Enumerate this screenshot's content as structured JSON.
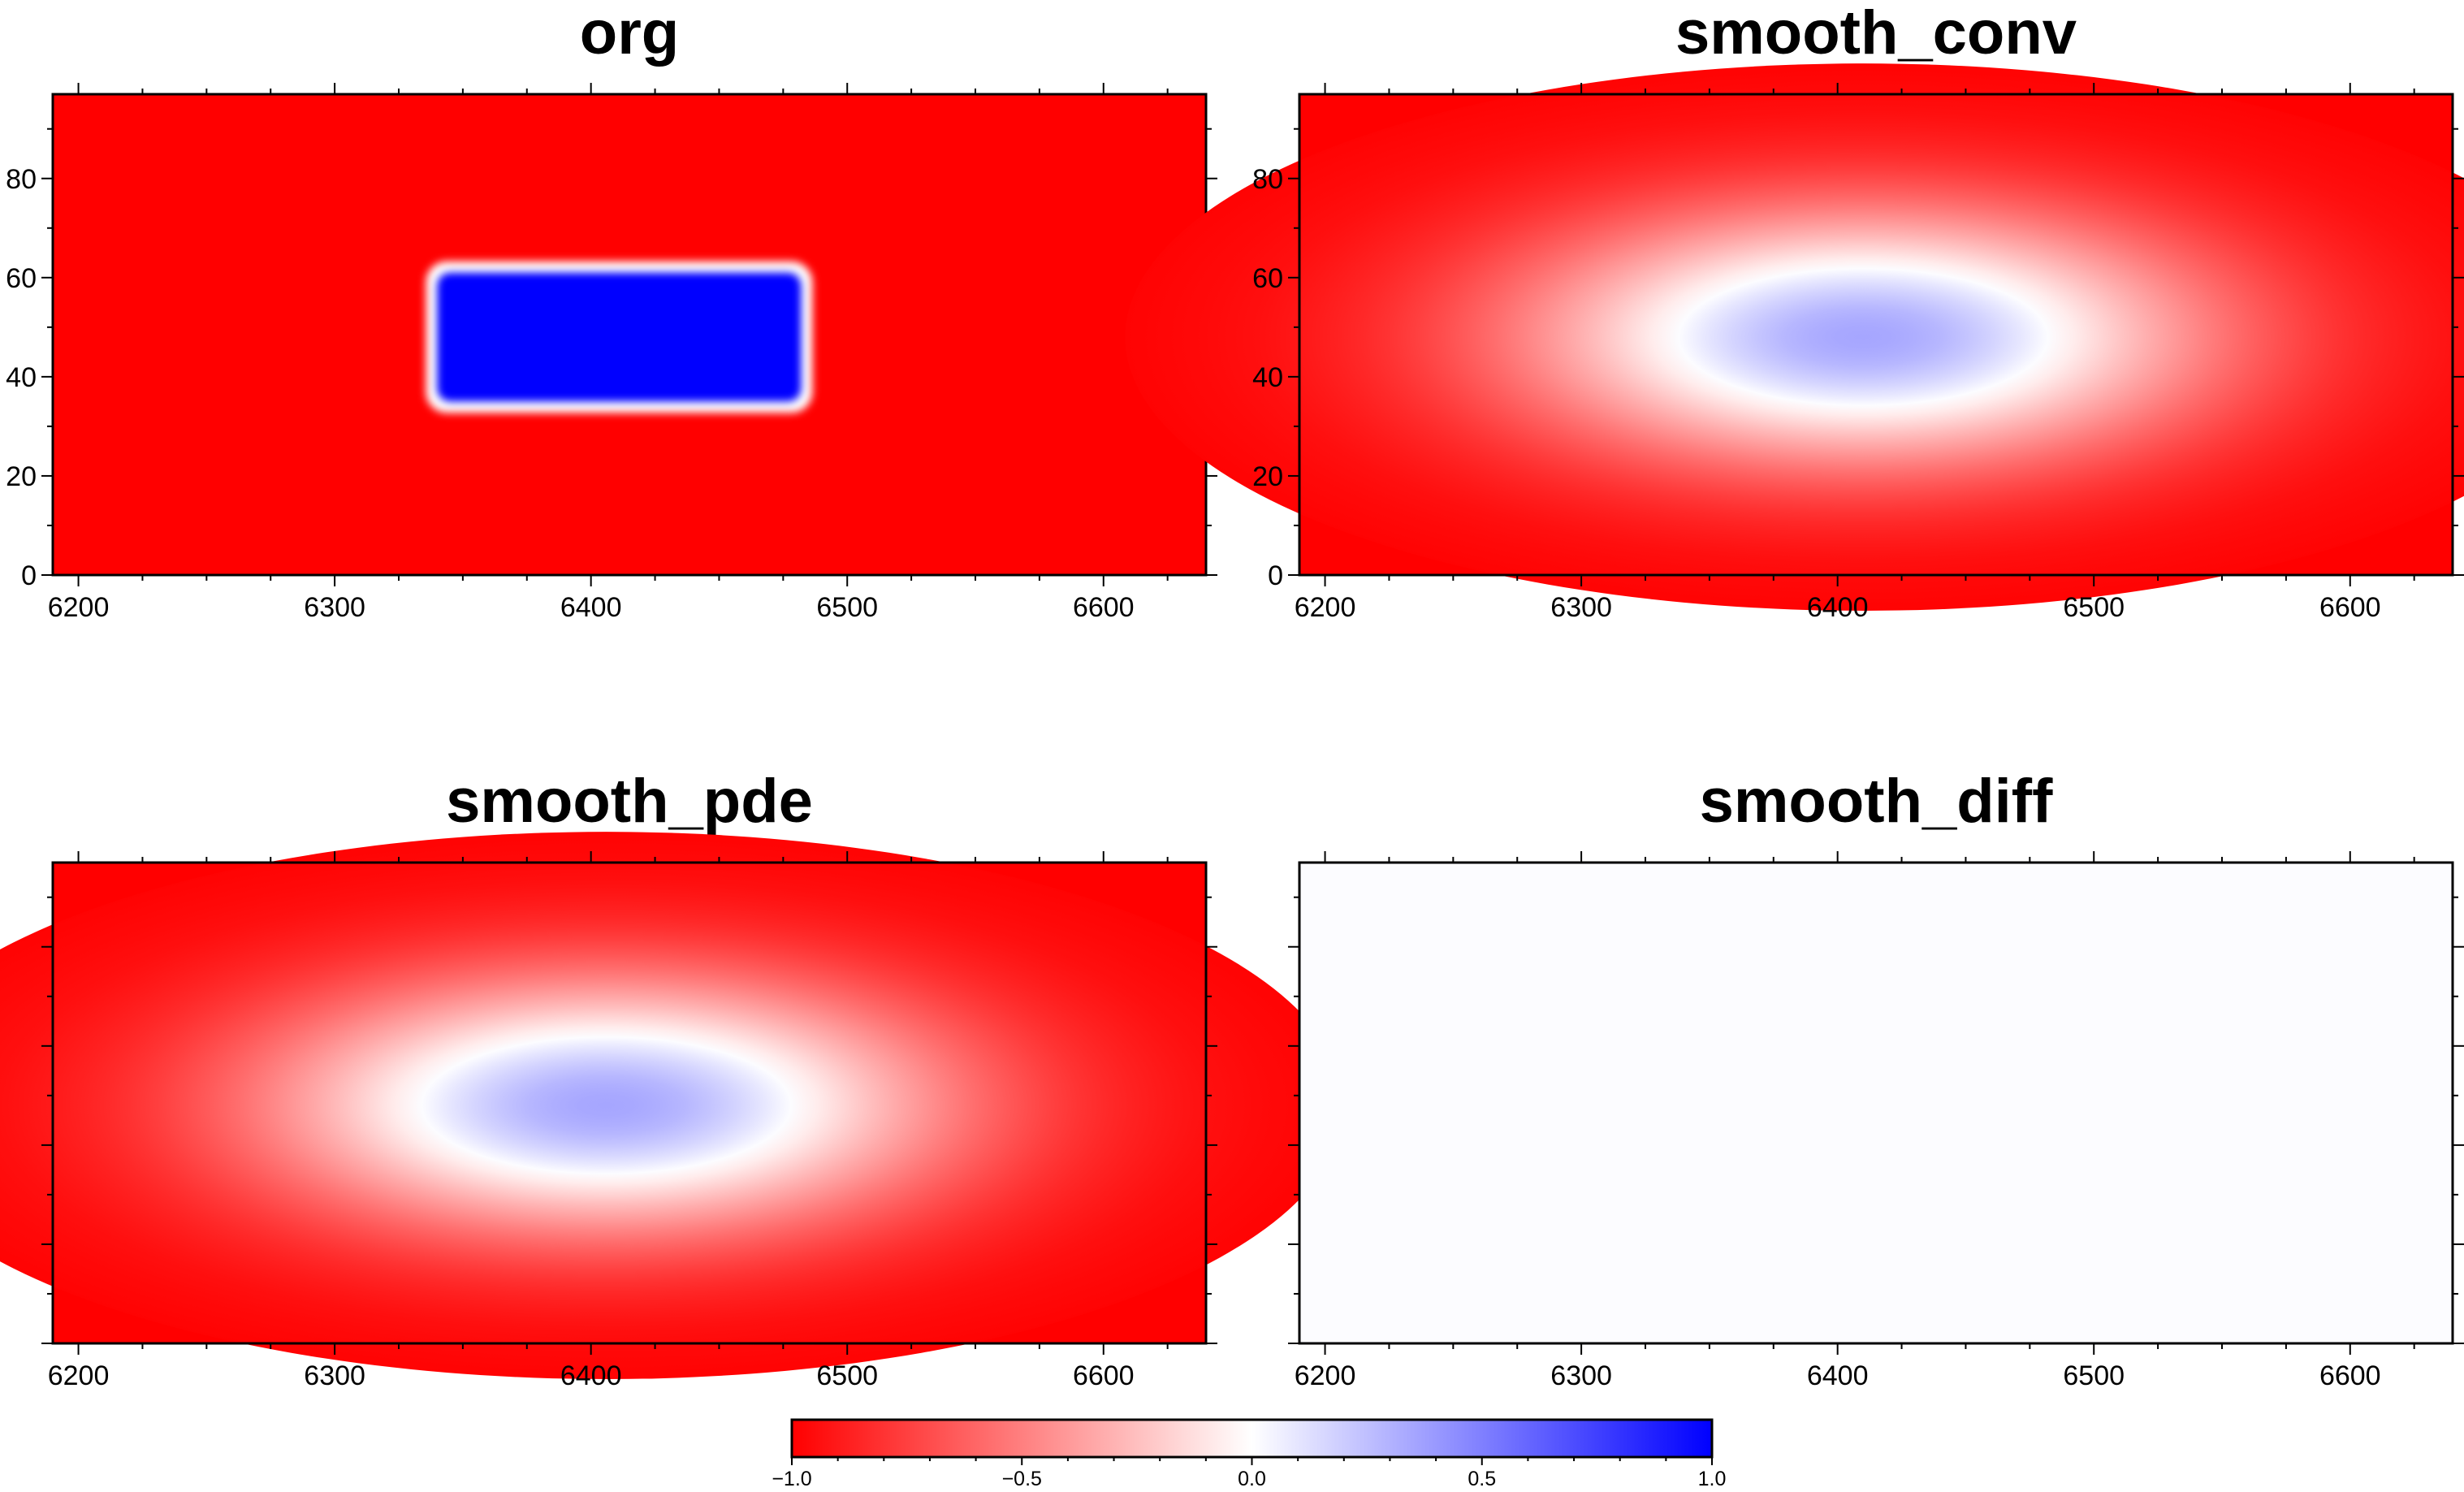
{
  "colors": {
    "negative": "#ff0000",
    "zero": "#ffffff",
    "positive": "#0000ff"
  },
  "chart_data": [
    {
      "type": "heatmap",
      "title": "org",
      "xlim": [
        6190,
        6640
      ],
      "ylim": [
        0,
        97
      ],
      "xticks": [
        6200,
        6300,
        6400,
        6500,
        6600
      ],
      "yticks": [
        0,
        20,
        40,
        60,
        80
      ],
      "xticklabels": [
        "6200",
        "6300",
        "6400",
        "6500",
        "6600"
      ],
      "yticklabels": [
        "0",
        "20",
        "40",
        "60",
        "80"
      ],
      "field": {
        "kind": "box",
        "x": [
          6340,
          6482
        ],
        "y": [
          35,
          61
        ],
        "background": -1.0,
        "peak": 1.0
      }
    },
    {
      "type": "heatmap",
      "title": "smooth_conv",
      "xlim": [
        6190,
        6640
      ],
      "ylim": [
        0,
        97
      ],
      "xticks": [
        6200,
        6300,
        6400,
        6500,
        6600
      ],
      "yticks": [
        0,
        20,
        40,
        60,
        80
      ],
      "xticklabels": [
        "6200",
        "6300",
        "6400",
        "6500",
        "6600"
      ],
      "yticklabels": [
        "0",
        "20",
        "40",
        "60",
        "80"
      ],
      "field": {
        "kind": "blob",
        "center": [
          6410,
          48
        ],
        "spread": [
          120,
          23
        ],
        "background": -1.0,
        "peak": 0.35
      }
    },
    {
      "type": "heatmap",
      "title": "smooth_pde",
      "xlim": [
        6190,
        6640
      ],
      "ylim": [
        0,
        97
      ],
      "xticks": [
        6200,
        6300,
        6400,
        6500,
        6600
      ],
      "yticks": [
        0,
        20,
        40,
        60,
        80
      ],
      "xticklabels": [
        "6200",
        "6300",
        "6400",
        "6500",
        "6600"
      ],
      "yticklabels": [],
      "field": {
        "kind": "blob",
        "center": [
          6406,
          48
        ],
        "spread": [
          120,
          23
        ],
        "background": -1.0,
        "peak": 0.35
      }
    },
    {
      "type": "heatmap",
      "title": "smooth_diff",
      "xlim": [
        6190,
        6640
      ],
      "ylim": [
        0,
        97
      ],
      "xticks": [
        6200,
        6300,
        6400,
        6500,
        6600
      ],
      "yticks": [
        0,
        20,
        40,
        60,
        80
      ],
      "xticklabels": [
        "6200",
        "6300",
        "6400",
        "6500",
        "6600"
      ],
      "yticklabels": [],
      "field": {
        "kind": "uniform",
        "value": 0.01
      }
    }
  ],
  "colorbar": {
    "range": [
      -1.0,
      1.0
    ],
    "ticks": [
      -1.0,
      -0.5,
      0.0,
      0.5,
      1.0
    ],
    "ticklabels": [
      "−1.0",
      "−0.5",
      "0.0",
      "0.5",
      "1.0"
    ]
  }
}
